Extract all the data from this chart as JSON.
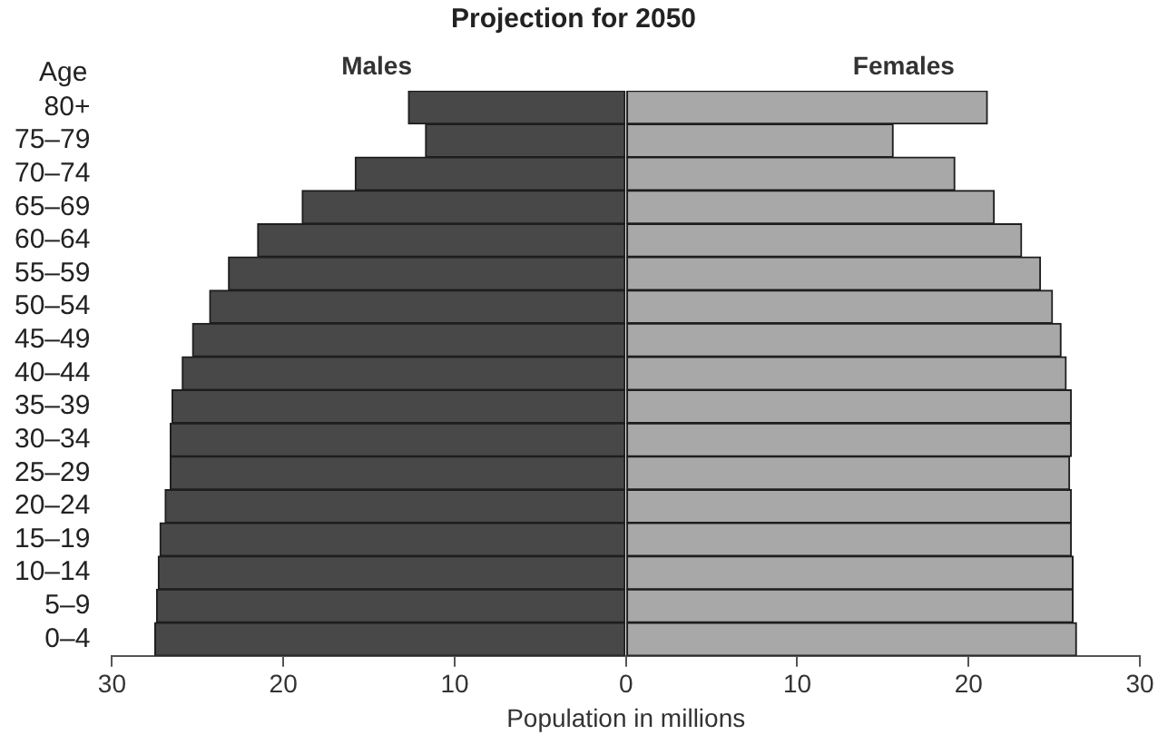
{
  "chart_data": {
    "type": "bar",
    "orientation": "horizontal",
    "stacked": true,
    "title": "Projection for 2050",
    "xlabel": "Population in millions",
    "ylabel": "Age",
    "categories": [
      "80+",
      "75–79",
      "70–74",
      "65–69",
      "60–64",
      "55–59",
      "50–54",
      "45–49",
      "40–44",
      "35–39",
      "30–34",
      "25–29",
      "20–24",
      "15–19",
      "10–14",
      "5–9",
      "0–4"
    ],
    "series": [
      {
        "name": "Males",
        "color": "#484848",
        "values": [
          -12.7,
          -11.7,
          -15.8,
          -18.9,
          -21.5,
          -23.2,
          -24.3,
          -25.3,
          -25.9,
          -26.5,
          -26.6,
          -26.6,
          -26.9,
          -27.2,
          -27.3,
          -27.4,
          -27.5
        ]
      },
      {
        "name": "Females",
        "color": "#a8a8a8",
        "values": [
          21.1,
          15.6,
          19.2,
          21.5,
          23.1,
          24.2,
          24.9,
          25.4,
          25.7,
          26.0,
          26.0,
          25.9,
          26.0,
          26.0,
          26.1,
          26.1,
          26.3
        ]
      }
    ],
    "xlim": [
      -30,
      30
    ],
    "xticks": [
      {
        "value": -30,
        "label": "30"
      },
      {
        "value": -20,
        "label": "20"
      },
      {
        "value": -10,
        "label": "10"
      },
      0,
      10,
      20,
      30
    ],
    "grid": false,
    "legend": false
  }
}
